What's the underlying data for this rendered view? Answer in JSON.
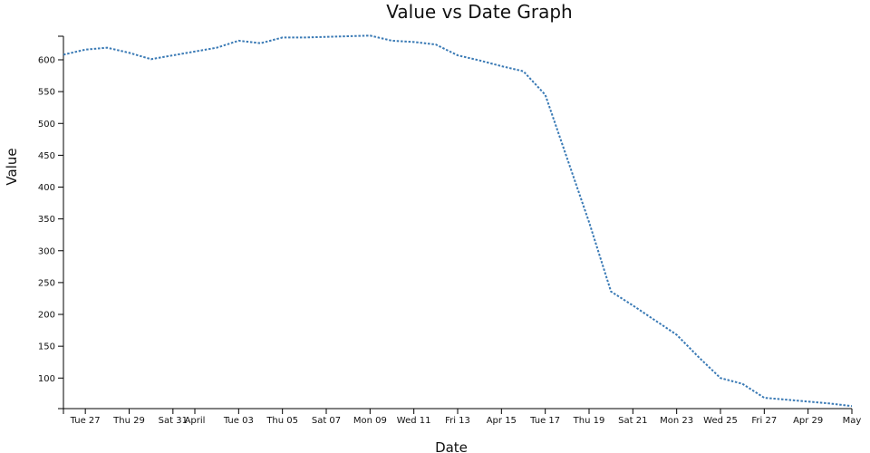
{
  "chart_data": {
    "type": "line",
    "title": "Value vs Date Graph",
    "xlabel": "Date",
    "ylabel": "Value",
    "ylim": [
      52,
      637
    ],
    "y_ticks": [
      100,
      150,
      200,
      250,
      300,
      350,
      400,
      450,
      500,
      550,
      600
    ],
    "x_tick_labels": [
      "Tue 27",
      "Thu 29",
      "Sat 31",
      "April",
      "Tue 03",
      "Thu 05",
      "Sat 07",
      "Mon 09",
      "Wed 11",
      "Fri 13",
      "Apr 15",
      "Tue 17",
      "Thu 19",
      "Sat 21",
      "Mon 23",
      "Wed 25",
      "Fri 27",
      "Apr 29",
      "May"
    ],
    "x_tick_days": [
      1,
      3,
      5,
      6,
      8,
      10,
      12,
      14,
      16,
      18,
      20,
      22,
      24,
      26,
      28,
      30,
      32,
      34,
      36
    ],
    "grid": false,
    "color": "#3a7ab5",
    "series": [
      {
        "x": [
          "Mar 26",
          "Mar 27",
          "Mar 28",
          "Mar 29",
          "Mar 30",
          "Mar 31",
          "Apr 1",
          "Apr 2",
          "Apr 3",
          "Apr 4",
          "Apr 5",
          "Apr 6",
          "Apr 7",
          "Apr 8",
          "Apr 9",
          "Apr 10",
          "Apr 11",
          "Apr 12",
          "Apr 13",
          "Apr 14",
          "Apr 15",
          "Apr 16",
          "Apr 17",
          "Apr 18",
          "Apr 19",
          "Apr 20",
          "Apr 21",
          "Apr 22",
          "Apr 23",
          "Apr 24",
          "Apr 25",
          "Apr 26",
          "Apr 27",
          "Apr 28",
          "Apr 29",
          "Apr 30",
          "May 1"
        ],
        "values": [
          608,
          616,
          619,
          611,
          601,
          607,
          613,
          619,
          630,
          626,
          635,
          635,
          636,
          637,
          638,
          630,
          628,
          624,
          607,
          599,
          590,
          582,
          545,
          445,
          345,
          236,
          214,
          191,
          168,
          133,
          100,
          91,
          69,
          66,
          63,
          60,
          56
        ]
      }
    ]
  }
}
